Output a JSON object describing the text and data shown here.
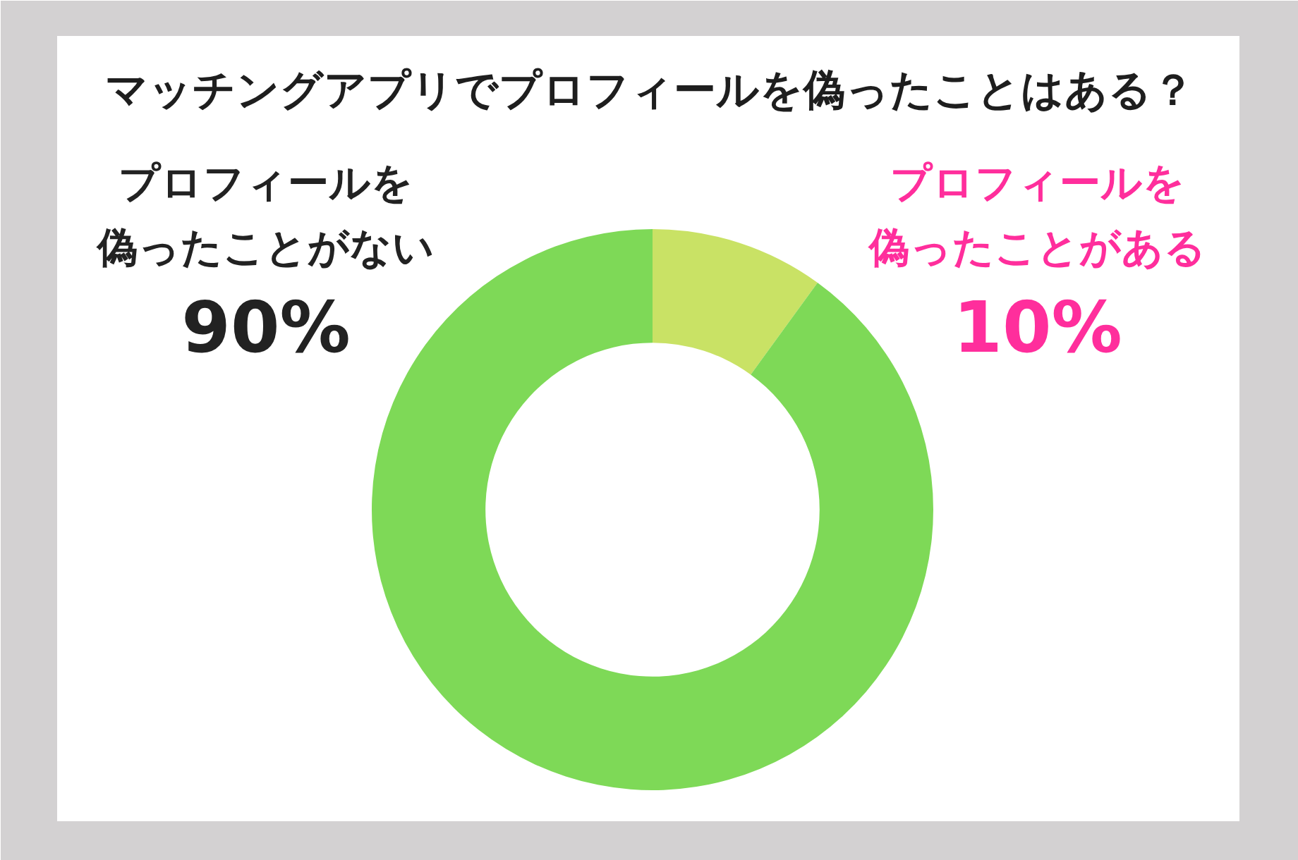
{
  "chart_data": {
    "type": "donut",
    "title": "マッチングアプリでプロフィールを偽ったことはある？",
    "categories": [
      "プロフィールを偽ったことがある",
      "プロフィールを偽ったことがない"
    ],
    "values": [
      10,
      90
    ],
    "colors": [
      "#c9e265",
      "#7ed957"
    ],
    "value_labels": [
      "10%",
      "90%"
    ]
  }
}
